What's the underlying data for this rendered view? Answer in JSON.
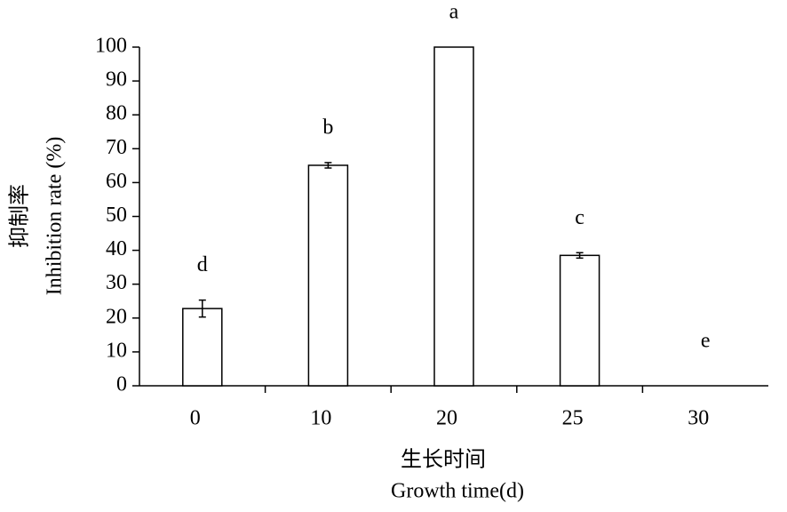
{
  "chart_data": {
    "type": "bar",
    "xlabel": [
      "生长时间",
      "Growth time(d)"
    ],
    "ylabel": [
      "抑制率",
      "Inhibition rate (%)"
    ],
    "categories": [
      "0",
      "10",
      "20",
      "25",
      "30"
    ],
    "values": [
      22.8,
      65.1,
      100,
      38.5,
      0
    ],
    "errors": [
      2.5,
      0.8,
      0,
      0.8,
      0
    ],
    "labels": [
      "d",
      "b",
      "a",
      "c",
      "e"
    ],
    "color": "#ffffff",
    "ylim": [
      0,
      100
    ],
    "yticks": [
      0,
      10,
      20,
      30,
      40,
      50,
      60,
      70,
      80,
      90,
      100
    ],
    "grid": false
  }
}
